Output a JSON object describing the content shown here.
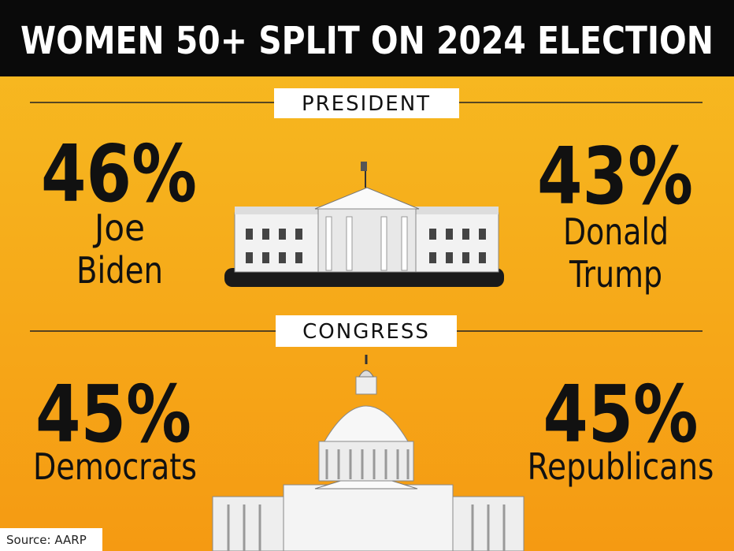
{
  "header": {
    "title": "WOMEN 50+ SPLIT ON 2024 ELECTION"
  },
  "sections": [
    {
      "label": "PRESIDENT",
      "left": {
        "value": "46%",
        "lines": [
          "Joe",
          "Biden"
        ]
      },
      "right": {
        "value": "43%",
        "lines": [
          "Donald",
          "Trump"
        ]
      }
    },
    {
      "label": "CONGRESS",
      "left": {
        "value": "45%",
        "lines": [
          "Democrats"
        ]
      },
      "right": {
        "value": "45%",
        "lines": [
          "Republicans"
        ]
      }
    }
  ],
  "source": "Source: AARP"
}
